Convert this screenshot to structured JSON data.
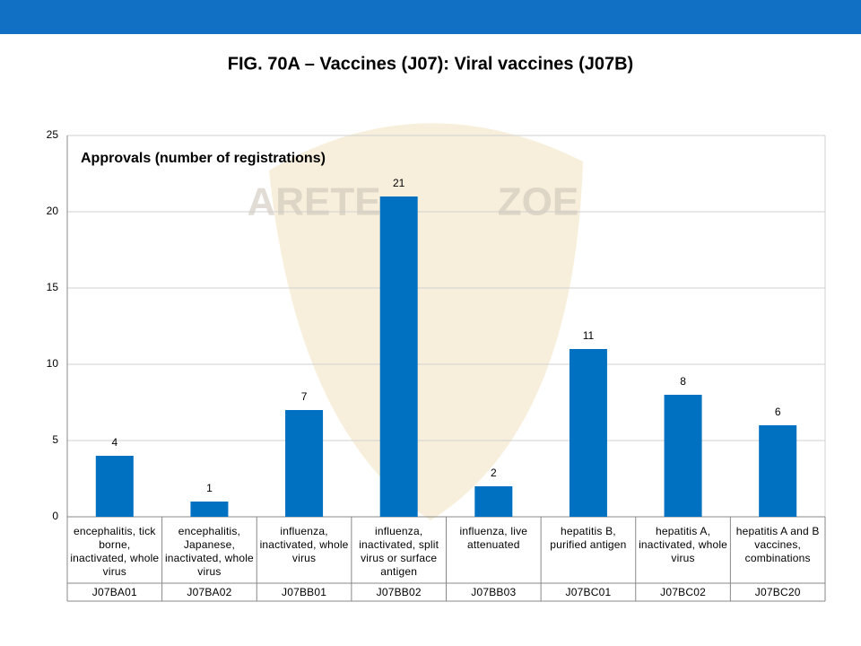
{
  "chart_data": {
    "type": "bar",
    "title": "FIG. 70A – Vaccines (J07): Viral vaccines (J07B)",
    "annotation": "Approvals (number of registrations)",
    "watermark": [
      "ARETE",
      "ZOE"
    ],
    "categories": [
      "encephalitis, tick borne, inactivated, whole virus",
      "encephalitis, Japanese, inactivated, whole virus",
      "influenza, inactivated, whole virus",
      "influenza, inactivated, split virus or surface antigen",
      "influenza, live attenuated",
      "hepatitis B, purified antigen",
      "hepatitis A, inactivated, whole virus",
      "hepatitis A and B vaccines, combinations"
    ],
    "category_codes": [
      "J07BA01",
      "J07BA02",
      "J07BB01",
      "J07BB02",
      "J07BB03",
      "J07BC01",
      "J07BC02",
      "J07BC20"
    ],
    "values": [
      4,
      1,
      7,
      21,
      2,
      11,
      8,
      6
    ],
    "color": "#0070c0",
    "ylim": [
      0,
      25
    ],
    "yticks": [
      0,
      5,
      10,
      15,
      20,
      25
    ],
    "grid": true
  }
}
